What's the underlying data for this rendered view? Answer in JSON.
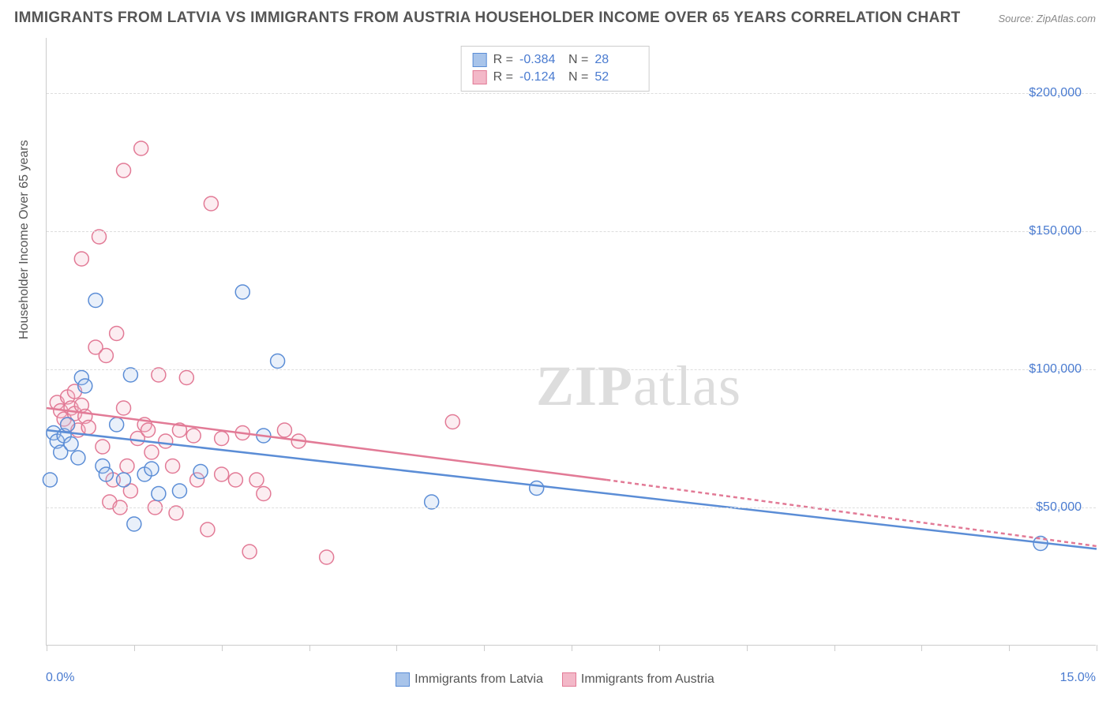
{
  "title": "IMMIGRANTS FROM LATVIA VS IMMIGRANTS FROM AUSTRIA HOUSEHOLDER INCOME OVER 65 YEARS CORRELATION CHART",
  "source": "Source: ZipAtlas.com",
  "watermark_a": "ZIP",
  "watermark_b": "atlas",
  "y_axis_title": "Householder Income Over 65 years",
  "chart": {
    "type": "scatter",
    "xlim": [
      0.0,
      15.0
    ],
    "ylim": [
      0,
      220000
    ],
    "x_tick_min_label": "0.0%",
    "x_tick_max_label": "15.0%",
    "y_ticks": [
      50000,
      100000,
      150000,
      200000
    ],
    "y_tick_labels": [
      "$50,000",
      "$100,000",
      "$150,000",
      "$200,000"
    ],
    "x_tick_positions": [
      0,
      1.25,
      2.5,
      3.75,
      5.0,
      6.25,
      7.5,
      8.75,
      10.0,
      11.25,
      12.5,
      13.75,
      15.0
    ],
    "grid_color": "#dddddd",
    "background_color": "#ffffff",
    "axis_color": "#cccccc",
    "tick_label_color": "#4a7bd0",
    "label_fontsize": 16,
    "title_fontsize": 19,
    "marker_radius": 9,
    "marker_stroke_width": 1.5,
    "marker_fill_opacity": 0.25,
    "trend_line_width": 2.5
  },
  "series": {
    "latvia": {
      "label": "Immigrants from Latvia",
      "color_stroke": "#5b8dd6",
      "color_fill": "#a8c4ea",
      "R": "-0.384",
      "N": "28",
      "trend": {
        "x1": 0.0,
        "y1": 78000,
        "x2": 15.0,
        "y2": 35000
      },
      "points": [
        {
          "x": 0.1,
          "y": 77000
        },
        {
          "x": 0.15,
          "y": 74000
        },
        {
          "x": 0.2,
          "y": 70000
        },
        {
          "x": 0.25,
          "y": 76000
        },
        {
          "x": 0.3,
          "y": 80000
        },
        {
          "x": 0.35,
          "y": 73000
        },
        {
          "x": 0.45,
          "y": 68000
        },
        {
          "x": 0.5,
          "y": 97000
        },
        {
          "x": 0.55,
          "y": 94000
        },
        {
          "x": 0.7,
          "y": 125000
        },
        {
          "x": 0.8,
          "y": 65000
        },
        {
          "x": 0.85,
          "y": 62000
        },
        {
          "x": 1.0,
          "y": 80000
        },
        {
          "x": 1.1,
          "y": 60000
        },
        {
          "x": 1.2,
          "y": 98000
        },
        {
          "x": 1.25,
          "y": 44000
        },
        {
          "x": 1.4,
          "y": 62000
        },
        {
          "x": 1.5,
          "y": 64000
        },
        {
          "x": 1.6,
          "y": 55000
        },
        {
          "x": 1.9,
          "y": 56000
        },
        {
          "x": 2.2,
          "y": 63000
        },
        {
          "x": 2.8,
          "y": 128000
        },
        {
          "x": 3.1,
          "y": 76000
        },
        {
          "x": 3.3,
          "y": 103000
        },
        {
          "x": 5.5,
          "y": 52000
        },
        {
          "x": 7.0,
          "y": 57000
        },
        {
          "x": 14.2,
          "y": 37000
        },
        {
          "x": 0.05,
          "y": 60000
        }
      ]
    },
    "austria": {
      "label": "Immigrants from Austria",
      "color_stroke": "#e27a96",
      "color_fill": "#f3b8c8",
      "R": "-0.124",
      "N": "52",
      "trend": {
        "x1": 0.0,
        "y1": 86000,
        "x2": 8.0,
        "y2": 60000
      },
      "trend_dash": {
        "x1": 8.0,
        "y1": 60000,
        "x2": 15.0,
        "y2": 36000
      },
      "points": [
        {
          "x": 0.15,
          "y": 88000
        },
        {
          "x": 0.2,
          "y": 85000
        },
        {
          "x": 0.25,
          "y": 82000
        },
        {
          "x": 0.3,
          "y": 90000
        },
        {
          "x": 0.3,
          "y": 80000
        },
        {
          "x": 0.35,
          "y": 86000
        },
        {
          "x": 0.4,
          "y": 84000
        },
        {
          "x": 0.4,
          "y": 92000
        },
        {
          "x": 0.45,
          "y": 78000
        },
        {
          "x": 0.5,
          "y": 87000
        },
        {
          "x": 0.5,
          "y": 140000
        },
        {
          "x": 0.55,
          "y": 83000
        },
        {
          "x": 0.6,
          "y": 79000
        },
        {
          "x": 0.7,
          "y": 108000
        },
        {
          "x": 0.75,
          "y": 148000
        },
        {
          "x": 0.8,
          "y": 72000
        },
        {
          "x": 0.85,
          "y": 105000
        },
        {
          "x": 0.9,
          "y": 52000
        },
        {
          "x": 0.95,
          "y": 60000
        },
        {
          "x": 1.0,
          "y": 113000
        },
        {
          "x": 1.05,
          "y": 50000
        },
        {
          "x": 1.1,
          "y": 86000
        },
        {
          "x": 1.1,
          "y": 172000
        },
        {
          "x": 1.15,
          "y": 65000
        },
        {
          "x": 1.2,
          "y": 56000
        },
        {
          "x": 1.3,
          "y": 75000
        },
        {
          "x": 1.35,
          "y": 180000
        },
        {
          "x": 1.4,
          "y": 80000
        },
        {
          "x": 1.45,
          "y": 78000
        },
        {
          "x": 1.5,
          "y": 70000
        },
        {
          "x": 1.55,
          "y": 50000
        },
        {
          "x": 1.6,
          "y": 98000
        },
        {
          "x": 1.7,
          "y": 74000
        },
        {
          "x": 1.8,
          "y": 65000
        },
        {
          "x": 1.85,
          "y": 48000
        },
        {
          "x": 1.9,
          "y": 78000
        },
        {
          "x": 2.0,
          "y": 97000
        },
        {
          "x": 2.1,
          "y": 76000
        },
        {
          "x": 2.15,
          "y": 60000
        },
        {
          "x": 2.3,
          "y": 42000
        },
        {
          "x": 2.35,
          "y": 160000
        },
        {
          "x": 2.5,
          "y": 75000
        },
        {
          "x": 2.5,
          "y": 62000
        },
        {
          "x": 2.7,
          "y": 60000
        },
        {
          "x": 2.8,
          "y": 77000
        },
        {
          "x": 2.9,
          "y": 34000
        },
        {
          "x": 3.0,
          "y": 60000
        },
        {
          "x": 3.1,
          "y": 55000
        },
        {
          "x": 3.4,
          "y": 78000
        },
        {
          "x": 3.6,
          "y": 74000
        },
        {
          "x": 4.0,
          "y": 32000
        },
        {
          "x": 5.8,
          "y": 81000
        }
      ]
    }
  },
  "legend_top": {
    "R_label": "R =",
    "N_label": "N ="
  }
}
